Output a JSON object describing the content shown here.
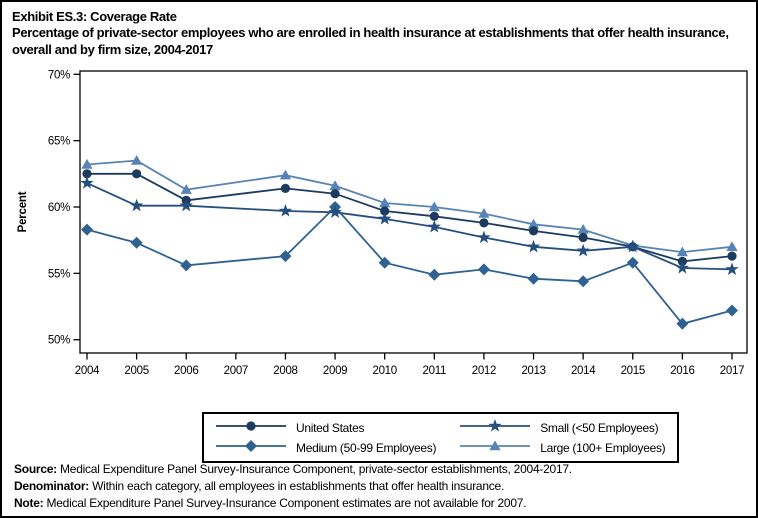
{
  "title": "Exhibit ES.3: Coverage Rate",
  "subtitle": "Percentage of private-sector employees who are enrolled in health insurance at establishments that offer health insurance, overall and by firm size, 2004-2017",
  "footer": {
    "source_label": "Source:",
    "source_text": " Medical Expenditure Panel Survey-Insurance Component, private-sector establishments, 2004-2017.",
    "denominator_label": "Denominator:",
    "denominator_text": " Within each category, all employees in establishments that offer health insurance.",
    "note_label": "Note:",
    "note_text": " Medical Expenditure Panel Survey-Insurance Component estimates are not available for 2007."
  },
  "chart_data": {
    "type": "line",
    "title": "Exhibit ES.3: Coverage Rate",
    "xlabel": "",
    "ylabel": "Percent",
    "ylim": [
      49.5,
      70.5
    ],
    "yticks": [
      50,
      55,
      60,
      65,
      70
    ],
    "ytick_labels": [
      "50%",
      "55%",
      "60%",
      "65%",
      "70%"
    ],
    "grid": false,
    "legend_position": "bottom",
    "missing_data_note": "No estimates for 2007",
    "x": [
      2004,
      2005,
      2006,
      2007,
      2008,
      2009,
      2010,
      2011,
      2012,
      2013,
      2014,
      2015,
      2016,
      2017
    ],
    "series": [
      {
        "id": "united-states",
        "name": "United States",
        "marker": "circle",
        "color": "#1D3A5F",
        "values": [
          62.5,
          62.5,
          60.5,
          null,
          61.4,
          61.0,
          59.7,
          59.3,
          58.8,
          58.2,
          57.7,
          57.0,
          55.9,
          56.3
        ]
      },
      {
        "id": "small",
        "name": "Small (<50 Employees)",
        "marker": "star",
        "color": "#254F7F",
        "values": [
          61.8,
          60.1,
          60.1,
          null,
          59.7,
          59.6,
          59.1,
          58.5,
          57.7,
          57.0,
          56.7,
          57.0,
          55.4,
          55.3
        ]
      },
      {
        "id": "medium",
        "name": "Medium (50-99 Employees)",
        "marker": "diamond",
        "color": "#2F6191",
        "values": [
          58.3,
          57.3,
          55.6,
          null,
          56.3,
          60.0,
          55.8,
          54.9,
          55.3,
          54.6,
          54.4,
          55.8,
          51.2,
          52.2
        ]
      },
      {
        "id": "large",
        "name": "Large (100+ Employees)",
        "marker": "triangle",
        "color": "#5884B3",
        "values": [
          63.2,
          63.5,
          61.3,
          null,
          62.4,
          61.6,
          60.3,
          60.0,
          59.5,
          58.7,
          58.3,
          57.1,
          56.6,
          57.0
        ]
      }
    ],
    "z_order": [
      3,
      0,
      2,
      1
    ]
  }
}
